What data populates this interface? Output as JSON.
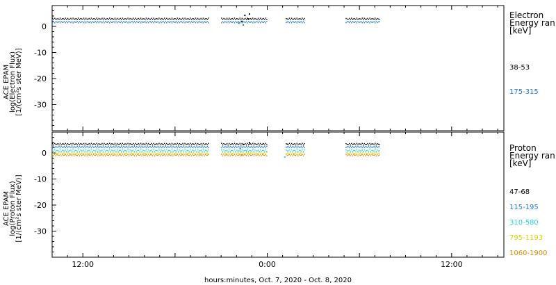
{
  "chart_data": [
    {
      "type": "scatter",
      "panel": "electron",
      "ylabel": [
        "ACE EPAM",
        "log(Electron Flux)",
        "[1/(cm²s ster MeV)]"
      ],
      "ylim": [
        -40,
        8
      ],
      "yticks": [
        0,
        -10,
        -20,
        -30
      ],
      "xlim": [
        7.0,
        36.4
      ],
      "legend": {
        "title": [
          "Electron",
          "Energy ran",
          "[keV]"
        ],
        "placement": "right"
      },
      "series": [
        {
          "name": "38-53",
          "color": "#000000",
          "level": 2.9,
          "segments": [
            [
              7.0,
              17.2
            ],
            [
              18.0,
              21.0
            ],
            [
              22.2,
              23.4
            ],
            [
              26.1,
              28.3
            ]
          ]
        },
        {
          "name": "175-315",
          "color": "#1f77d0",
          "level": 1.7,
          "segments": [
            [
              7.0,
              17.2
            ],
            [
              18.0,
              21.0
            ],
            [
              22.2,
              23.4
            ],
            [
              26.1,
              28.3
            ]
          ]
        }
      ],
      "scatter_points": [
        {
          "x": 19.1,
          "y": 1.5,
          "series": 1
        },
        {
          "x": 19.3,
          "y": 2.2,
          "series": 0
        },
        {
          "x": 19.5,
          "y": 4.5,
          "series": 0
        },
        {
          "x": 19.7,
          "y": 3.2,
          "series": 0
        },
        {
          "x": 19.4,
          "y": 0.8,
          "series": 1
        },
        {
          "x": 19.8,
          "y": 5.0,
          "series": 0
        }
      ]
    },
    {
      "type": "scatter",
      "panel": "proton",
      "ylabel": [
        "ACE EPAM",
        "log(Proton Flux)",
        "[1/(cm²s ster MeV)]"
      ],
      "ylim": [
        -40,
        8
      ],
      "yticks": [
        0,
        -10,
        -20,
        -30
      ],
      "xlim": [
        7.0,
        36.4
      ],
      "xticks": [
        "12:00",
        "0:00",
        "12:00"
      ],
      "xtick_values": [
        9.0,
        21.0,
        33.0
      ],
      "xlabel": "hours:minutes, Oct.  7, 2020 - Oct.  8, 2020",
      "legend": {
        "title": [
          "Proton",
          "Energy ran",
          "[keV]"
        ],
        "placement": "right"
      },
      "series": [
        {
          "name": "47-68",
          "color": "#000000",
          "level": 3.4,
          "segments": [
            [
              7.0,
              17.2
            ],
            [
              18.0,
              21.0
            ],
            [
              22.2,
              23.4
            ],
            [
              26.1,
              28.3
            ]
          ]
        },
        {
          "name": "115-195",
          "color": "#1f77d0",
          "level": 2.3,
          "segments": [
            [
              7.0,
              17.2
            ],
            [
              18.0,
              21.0
            ],
            [
              22.2,
              23.4
            ],
            [
              26.1,
              28.3
            ]
          ]
        },
        {
          "name": "310-580",
          "color": "#22d3e6",
          "level": 0.9,
          "segments": [
            [
              7.0,
              17.2
            ],
            [
              18.0,
              21.0
            ],
            [
              22.2,
              23.4
            ],
            [
              26.1,
              28.3
            ]
          ]
        },
        {
          "name": "795-1193",
          "color": "#d8d800",
          "level": -0.1,
          "segments": [
            [
              7.0,
              17.2
            ],
            [
              18.0,
              21.0
            ],
            [
              22.2,
              23.4
            ],
            [
              26.1,
              28.3
            ]
          ]
        },
        {
          "name": "1060-1900",
          "color": "#e08a00",
          "level": -0.8,
          "segments": [
            [
              7.0,
              17.2
            ],
            [
              18.0,
              21.0
            ],
            [
              22.2,
              23.4
            ],
            [
              26.1,
              28.3
            ]
          ]
        }
      ],
      "scatter_points": [
        {
          "x": 19.2,
          "y": 2.0,
          "series": 1
        },
        {
          "x": 19.4,
          "y": 3.5,
          "series": 0
        },
        {
          "x": 19.6,
          "y": 1.0,
          "series": 2
        },
        {
          "x": 19.8,
          "y": 4.2,
          "series": 0
        },
        {
          "x": 19.3,
          "y": -0.5,
          "series": 4
        },
        {
          "x": 19.7,
          "y": 0.0,
          "series": 3
        },
        {
          "x": 22.1,
          "y": -1.3,
          "series": 2
        }
      ]
    }
  ]
}
